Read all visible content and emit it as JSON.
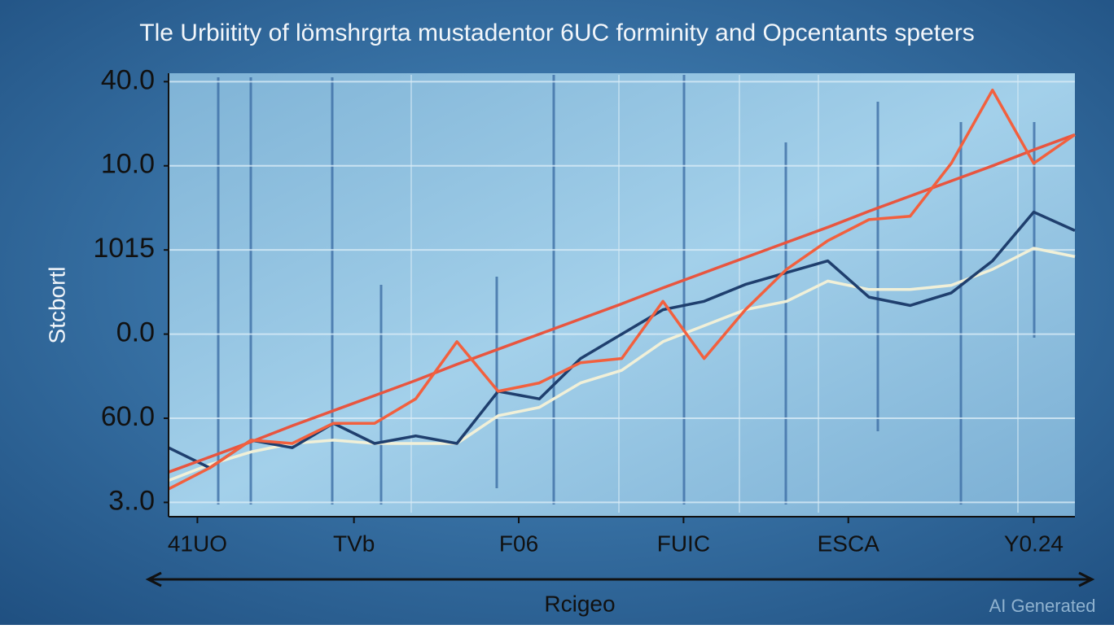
{
  "chart_data": {
    "type": "line",
    "title": "Tle Urbiitity of lömshrgrta mustadentor 6UC forminity and Opcentants speters",
    "y_label": "Stcbortl",
    "x_label": "Rcigeo",
    "watermark": "AI Generated",
    "x": [
      0,
      1,
      2,
      3,
      4,
      5,
      6,
      7,
      8,
      9,
      10,
      11,
      12,
      13,
      14,
      15,
      16,
      17,
      18,
      19,
      20,
      21,
      22
    ],
    "xlim": [
      0,
      22
    ],
    "xticks": [
      {
        "value": 0.7,
        "label": "41UO"
      },
      {
        "value": 4.5,
        "label": "TVb"
      },
      {
        "value": 8.5,
        "label": "F06"
      },
      {
        "value": 12.5,
        "label": "FUIC"
      },
      {
        "value": 16.5,
        "label": "ESCA"
      },
      {
        "value": 21,
        "label": "Y0.24"
      }
    ],
    "ylim": [
      -0.17,
      5.1
    ],
    "yticks": [
      {
        "value": 0,
        "label": "3..0"
      },
      {
        "value": 1,
        "label": "60.0"
      },
      {
        "value": 2,
        "label": "0.0"
      },
      {
        "value": 3,
        "label": "1015"
      },
      {
        "value": 4,
        "label": "10.0"
      },
      {
        "value": 5,
        "label": "40.0"
      }
    ],
    "grid": true,
    "series": [
      {
        "color": "#f1f0d8",
        "values": [
          0.26,
          0.45,
          0.6,
          0.7,
          0.74,
          0.7,
          0.7,
          0.7,
          1.03,
          1.13,
          1.42,
          1.57,
          1.91,
          2.1,
          2.29,
          2.39,
          2.63,
          2.53,
          2.53,
          2.58,
          2.77,
          3.02,
          2.92
        ]
      },
      {
        "color": "#1f3f6e",
        "values": [
          0.65,
          0.41,
          0.74,
          0.65,
          0.94,
          0.7,
          0.79,
          0.7,
          1.32,
          1.23,
          1.71,
          2.0,
          2.29,
          2.39,
          2.59,
          2.73,
          2.87,
          2.44,
          2.34,
          2.49,
          2.87,
          3.45,
          3.23
        ]
      },
      {
        "color": "#e8553f",
        "values": [
          0.36,
          0.54,
          0.72,
          0.91,
          1.09,
          1.27,
          1.45,
          1.64,
          1.82,
          2.0,
          2.18,
          2.36,
          2.55,
          2.73,
          2.91,
          3.09,
          3.27,
          3.46,
          3.64,
          3.82,
          4.0,
          4.19,
          4.37
        ]
      },
      {
        "color": "#f2603e",
        "values": [
          0.16,
          0.41,
          0.74,
          0.7,
          0.94,
          0.94,
          1.23,
          1.91,
          1.32,
          1.42,
          1.66,
          1.71,
          2.39,
          1.71,
          2.29,
          2.77,
          3.11,
          3.36,
          3.4,
          4.03,
          4.9,
          4.03,
          4.37
        ]
      }
    ]
  }
}
